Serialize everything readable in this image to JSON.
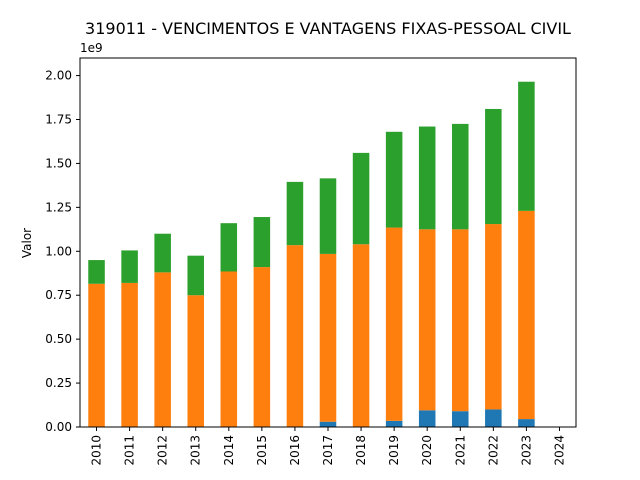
{
  "chart_data": {
    "type": "bar",
    "stacked": true,
    "title": "319011 - VENCIMENTOS E VANTAGENS FIXAS-PESSOAL CIVIL",
    "ylabel": "Valor",
    "scale_label": "1e9",
    "ylim": [
      0,
      2.1
    ],
    "yticks": [
      "0.00",
      "0.25",
      "0.50",
      "0.75",
      "1.00",
      "1.25",
      "1.50",
      "1.75",
      "2.00"
    ],
    "categories": [
      "2010",
      "2011",
      "2012",
      "2013",
      "2014",
      "2015",
      "2016",
      "2017",
      "2018",
      "2019",
      "2020",
      "2021",
      "2022",
      "2023",
      "2024"
    ],
    "grid": false,
    "legend": "none",
    "series": [
      {
        "color": "#1f77b4",
        "values": [
          0.0,
          0.0,
          0.0,
          0.0,
          0.0,
          0.0,
          0.0,
          0.03,
          0.0,
          0.035,
          0.095,
          0.09,
          0.1,
          0.045,
          0.0
        ]
      },
      {
        "color": "#ff7f0e",
        "values": [
          0.815,
          0.82,
          0.88,
          0.75,
          0.885,
          0.91,
          1.035,
          0.955,
          1.04,
          1.1,
          1.03,
          1.035,
          1.055,
          1.185,
          0.0
        ]
      },
      {
        "color": "#2ca02c",
        "values": [
          0.135,
          0.185,
          0.22,
          0.225,
          0.275,
          0.285,
          0.36,
          0.43,
          0.52,
          0.545,
          0.585,
          0.6,
          0.655,
          0.735,
          0.0
        ]
      }
    ]
  }
}
